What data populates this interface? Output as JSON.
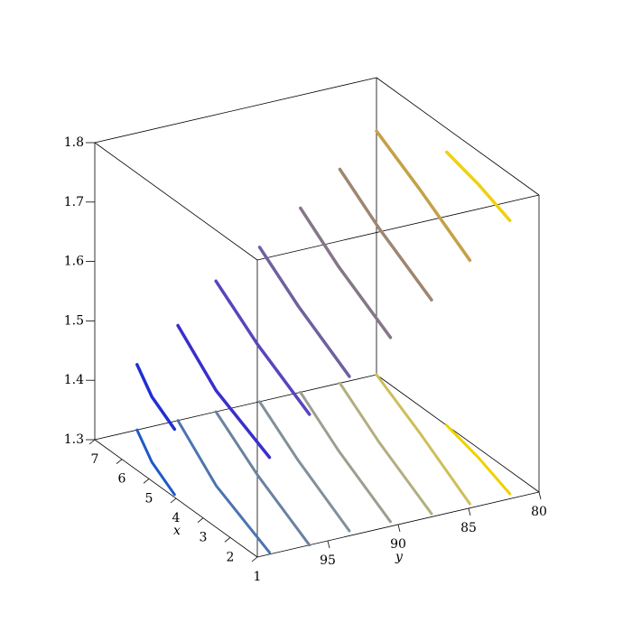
{
  "chart_data": {
    "type": "3d-curves",
    "xlabel": "x",
    "ylabel": "y",
    "xlim": [
      1,
      7
    ],
    "ylim": [
      80,
      100
    ],
    "zlim": [
      1.3,
      1.8
    ],
    "xticks": [
      1,
      2,
      3,
      4,
      5,
      6,
      7
    ],
    "yticks": [
      80,
      85,
      90,
      95
    ],
    "zticks": [
      1.3,
      1.4,
      1.5,
      1.6,
      1.7,
      1.8
    ],
    "series": [
      {
        "color": "#1f2fd2",
        "shadow_color": "#1e5ac6",
        "x": [
          7,
          5.62,
          4.16
        ],
        "y": [
          97,
          98.6,
          99.8
        ],
        "z": 1.41
      },
      {
        "color": "#3a2fcc",
        "shadow_color": "#4c74b0",
        "x": [
          7,
          4.13,
          1.07
        ],
        "y": [
          94.1,
          96.9,
          99.0
        ],
        "z": 1.46
      },
      {
        "color": "#5a44bc",
        "shadow_color": "#6a82a0",
        "x": [
          7,
          4.15,
          1
        ],
        "y": [
          91.4,
          93.9,
          96.3
        ],
        "z": 1.52
      },
      {
        "color": "#70609e",
        "shadow_color": "#82909a",
        "x": [
          7,
          4.38,
          1.19
        ],
        "y": [
          88.3,
          90.6,
          93.1
        ],
        "z": 1.56
      },
      {
        "color": "#857688",
        "shadow_color": "#9aa090",
        "x": [
          7,
          4.4,
          1.18
        ],
        "y": [
          85.4,
          87.7,
          90.2
        ],
        "z": 1.61
      },
      {
        "color": "#9e8670",
        "shadow_color": "#b2ae80",
        "x": [
          7,
          4.35,
          1.12
        ],
        "y": [
          82.6,
          84.9,
          87.4
        ],
        "z": 1.66
      },
      {
        "color": "#c4a048",
        "shadow_color": "#cebe5c",
        "x": [
          7,
          4.37,
          1.16
        ],
        "y": [
          80,
          82,
          84.6
        ],
        "z": 1.71
      },
      {
        "color": "#f0d010",
        "shadow_color": "#f2d000",
        "x": [
          4.41,
          2.87,
          1.19
        ],
        "y": [
          80,
          80.7,
          81.7
        ],
        "z": 1.76
      }
    ]
  }
}
